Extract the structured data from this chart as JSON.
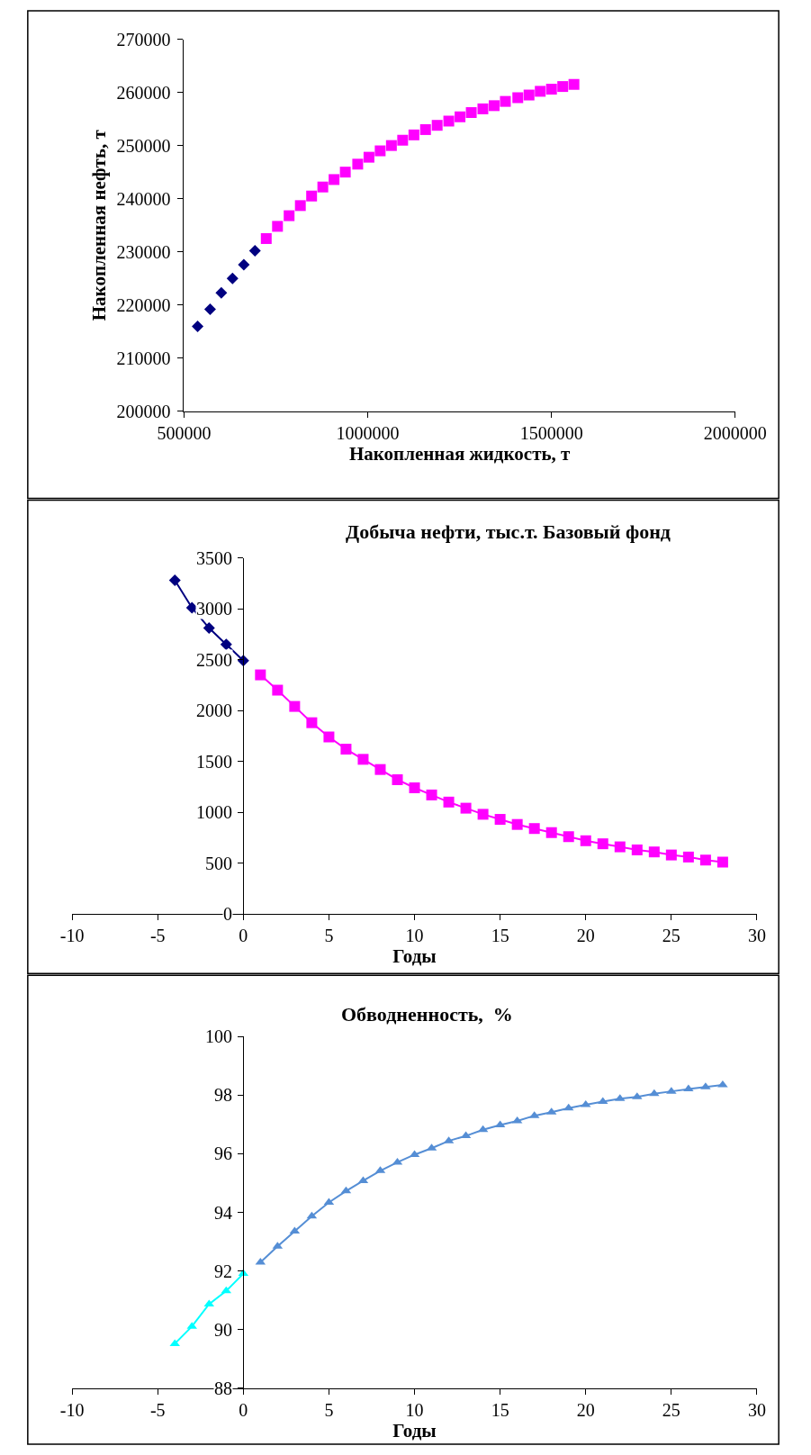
{
  "chart_data": [
    {
      "type": "scatter",
      "xlabel": "Накопленная жидкость, т",
      "ylabel": "Накопленная нефть, т",
      "xlim": [
        500000,
        2000000
      ],
      "xticks": [
        500000,
        1000000,
        1500000,
        2000000
      ],
      "ylim": [
        200000,
        270000
      ],
      "yticks": [
        200000,
        210000,
        220000,
        230000,
        240000,
        250000,
        260000,
        270000
      ],
      "series": [
        {
          "color": "#000080",
          "marker": "diamond",
          "x": [
            537000,
            571000,
            601500,
            632000,
            662700,
            693000
          ],
          "values": [
            216000,
            219200,
            222300,
            225000,
            227600,
            230200
          ]
        },
        {
          "color": "#ff00ff",
          "marker": "square",
          "x": [
            723800,
            754400,
            786000,
            816600,
            847200,
            877700,
            908300,
            938900,
            972700,
            1003300,
            1033800,
            1064400,
            1095000,
            1125600,
            1157200,
            1188900,
            1220500,
            1251100,
            1281700,
            1313300,
            1343900,
            1374500,
            1408300,
            1438900,
            1469400,
            1500000,
            1530600,
            1561100
          ],
          "values": [
            232500,
            234800,
            236800,
            238700,
            240500,
            242200,
            243600,
            245000,
            246500,
            247800,
            249000,
            250000,
            251000,
            252000,
            253000,
            253800,
            254600,
            255400,
            256200,
            256900,
            257500,
            258300,
            259000,
            259500,
            260200,
            260600,
            261100,
            261500
          ]
        }
      ]
    },
    {
      "type": "line",
      "title": "Добыча нефти, тыс.т. Базовый фонд",
      "xlabel": "Годы",
      "xlim": [
        -10,
        30
      ],
      "xticks": [
        -10,
        -5,
        0,
        5,
        10,
        15,
        20,
        25,
        30
      ],
      "ylim": [
        0,
        3500
      ],
      "yticks": [
        0,
        500,
        1000,
        1500,
        2000,
        2500,
        3000,
        3500
      ],
      "series": [
        {
          "color": "#000080",
          "marker": "diamond",
          "x": [
            -4,
            -3,
            -2,
            -1,
            0
          ],
          "values": [
            3280,
            3010,
            2810,
            2650,
            2490
          ]
        },
        {
          "color": "#ff00ff",
          "marker": "square",
          "x": [
            1,
            2,
            3,
            4,
            5,
            6,
            7,
            8,
            9,
            10,
            11,
            12,
            13,
            14,
            15,
            16,
            17,
            18,
            19,
            20,
            21,
            22,
            23,
            24,
            25,
            26,
            27,
            28
          ],
          "values": [
            2350,
            2200,
            2040,
            1880,
            1740,
            1620,
            1520,
            1420,
            1320,
            1240,
            1170,
            1100,
            1040,
            980,
            930,
            880,
            840,
            800,
            760,
            720,
            690,
            660,
            630,
            610,
            580,
            560,
            530,
            510
          ]
        }
      ]
    },
    {
      "type": "line",
      "title": "Обводненность,  %",
      "xlabel": "Годы",
      "xlim": [
        -10,
        30
      ],
      "xticks": [
        -10,
        -5,
        0,
        5,
        10,
        15,
        20,
        25,
        30
      ],
      "ylim": [
        88,
        100
      ],
      "yticks": [
        88,
        90,
        92,
        94,
        96,
        98,
        100
      ],
      "series": [
        {
          "color": "#00ffff",
          "marker": "triangle",
          "x": [
            -4,
            -3,
            -2,
            -1,
            0
          ],
          "values": [
            89.52,
            90.11,
            90.87,
            91.32,
            91.91
          ]
        },
        {
          "color": "#558ed5",
          "marker": "triangle",
          "x": [
            1,
            2,
            3,
            4,
            5,
            6,
            7,
            8,
            9,
            10,
            11,
            12,
            13,
            14,
            15,
            16,
            17,
            18,
            19,
            20,
            21,
            22,
            23,
            24,
            25,
            26,
            27,
            28
          ],
          "values": [
            92.3,
            92.84,
            93.36,
            93.87,
            94.34,
            94.73,
            95.08,
            95.42,
            95.71,
            95.97,
            96.19,
            96.44,
            96.61,
            96.82,
            96.98,
            97.12,
            97.3,
            97.42,
            97.56,
            97.67,
            97.78,
            97.88,
            97.94,
            98.05,
            98.13,
            98.21,
            98.28,
            98.35
          ]
        }
      ]
    }
  ]
}
